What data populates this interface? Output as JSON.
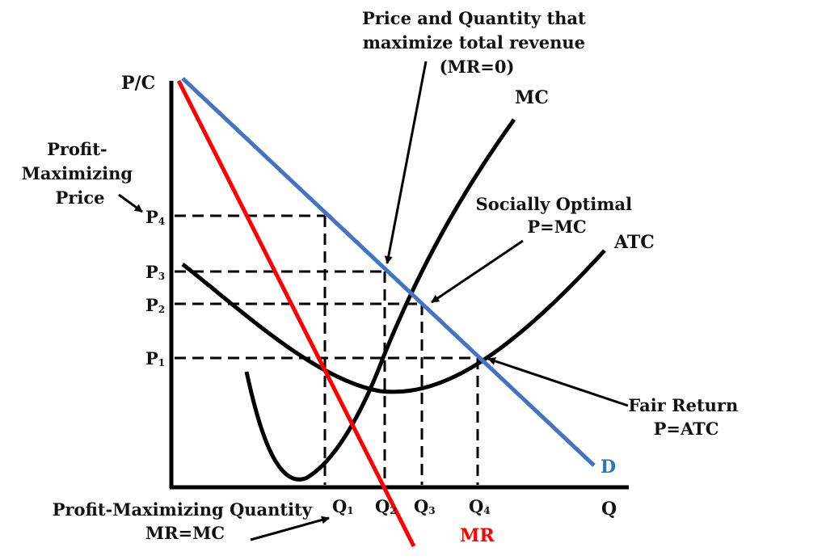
{
  "axes": {
    "y_label": "P/C",
    "x_label": "Q"
  },
  "prices": [
    {
      "main": "P",
      "sub": "4"
    },
    {
      "main": "P",
      "sub": "3"
    },
    {
      "main": "P",
      "sub": "2"
    },
    {
      "main": "P",
      "sub": "1"
    }
  ],
  "quantities": [
    {
      "main": "Q",
      "sub": "1"
    },
    {
      "main": "Q",
      "sub": "2"
    },
    {
      "main": "Q",
      "sub": "3"
    },
    {
      "main": "Q",
      "sub": "4"
    }
  ],
  "curves": {
    "mc": {
      "label": "MC",
      "color": "#000000"
    },
    "atc": {
      "label": "ATC",
      "color": "#000000"
    },
    "demand": {
      "label": "D",
      "color": "#4472c4"
    },
    "mr": {
      "label": "MR",
      "color": "#ff0000"
    }
  },
  "annotations": {
    "revenue": {
      "lines": [
        "Price and Quantity that",
        "maximize total revenue",
        "(MR=0)"
      ]
    },
    "socially_optimal": {
      "lines": [
        "Socially Optimal",
        "P=MC"
      ]
    },
    "profit_price": {
      "lines": [
        "Profit-",
        "Maximizing",
        "Price"
      ]
    },
    "fair_return": {
      "lines": [
        "Fair Return",
        "P=ATC"
      ]
    },
    "profit_quantity": {
      "lines": [
        "Profit-Maximizing Quantity",
        "MR=MC"
      ]
    }
  }
}
